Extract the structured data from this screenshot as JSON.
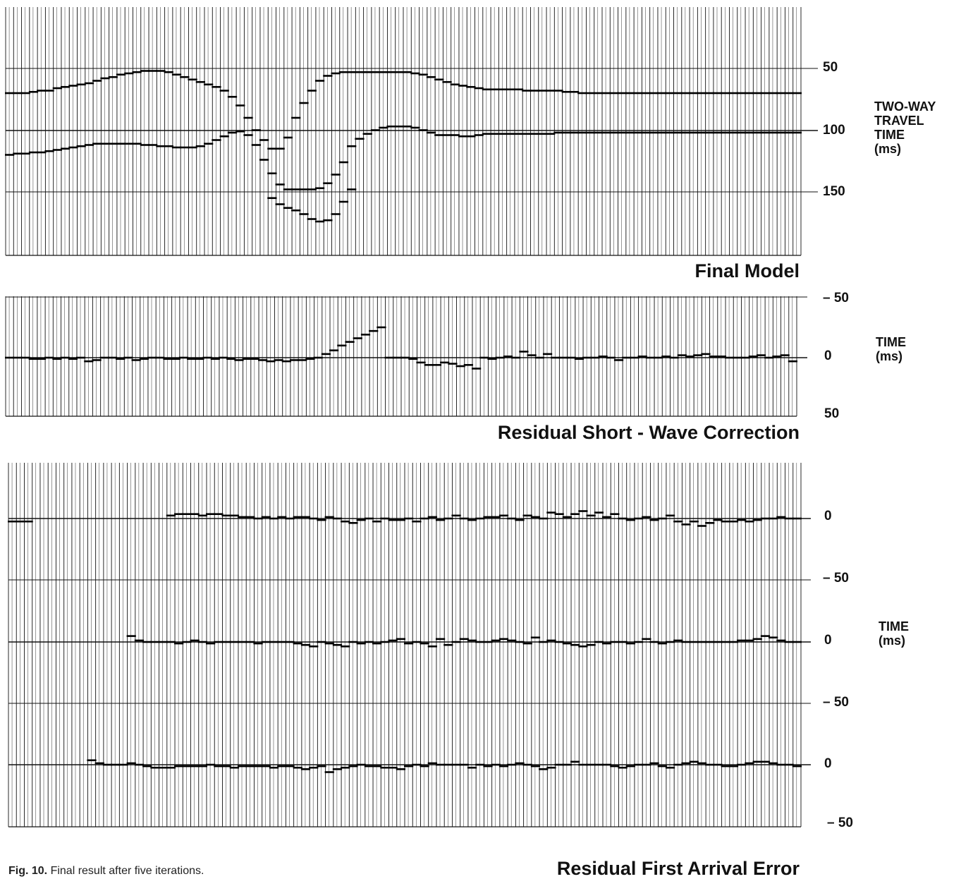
{
  "figure_caption": {
    "label": "Fig. 10.",
    "text": "Final result after five iterations."
  },
  "chart_data": [
    {
      "type": "line",
      "title": "Final Model",
      "ylabel_lines": [
        "TWO-WAY",
        "TRAVEL",
        "TIME",
        "(ms)"
      ],
      "tick_labels": [
        "50",
        "100",
        "150"
      ],
      "ylim": [
        0,
        200
      ],
      "y_inverted": true,
      "grid": true,
      "trace_count": 100,
      "series": [
        {
          "values": [
            70,
            70,
            70,
            69,
            68,
            68,
            66,
            65,
            64,
            63,
            62,
            60,
            58,
            57,
            55,
            54,
            53,
            52,
            52,
            52,
            53,
            55,
            57,
            59,
            61,
            63,
            65,
            68,
            73,
            80,
            90,
            100,
            108,
            115,
            115,
            106,
            90,
            78,
            68,
            60,
            56,
            54,
            53,
            53,
            53,
            53,
            53,
            53,
            53,
            53,
            53,
            54,
            55,
            57,
            59,
            61,
            63,
            64,
            65,
            66,
            67,
            67,
            67,
            67,
            67,
            68,
            68,
            68,
            68,
            68,
            69,
            69,
            70,
            70,
            70,
            70,
            70,
            70,
            70,
            70,
            70,
            70,
            70,
            70,
            70,
            70,
            70,
            70,
            70,
            70,
            70,
            70,
            70,
            70,
            70,
            70,
            70,
            70,
            70,
            70
          ]
        },
        {
          "values": [
            120,
            119,
            119,
            118,
            118,
            117,
            116,
            115,
            114,
            113,
            112,
            111,
            111,
            111,
            111,
            111,
            111,
            112,
            112,
            113,
            113,
            114,
            114,
            114,
            113,
            111,
            108,
            105,
            102,
            101,
            104,
            112,
            124,
            135,
            144,
            148,
            148,
            148,
            148,
            147,
            143,
            136,
            126,
            113,
            107,
            103,
            100,
            98,
            97,
            97,
            97,
            98,
            100,
            102,
            104,
            104,
            104,
            105,
            105,
            104,
            103,
            103,
            103,
            103,
            103,
            103,
            103,
            103,
            103,
            102,
            102,
            102,
            102,
            102,
            102,
            102,
            102,
            102,
            102,
            102,
            102,
            102,
            102,
            102,
            102,
            102,
            102,
            102,
            102,
            102,
            102,
            102,
            102,
            102,
            102,
            102,
            102,
            102,
            102,
            102
          ]
        },
        {
          "values": [
            null,
            null,
            null,
            null,
            null,
            null,
            null,
            null,
            null,
            null,
            null,
            null,
            null,
            null,
            null,
            null,
            null,
            null,
            null,
            null,
            null,
            null,
            null,
            null,
            null,
            null,
            null,
            null,
            null,
            null,
            null,
            null,
            null,
            155,
            160,
            163,
            165,
            168,
            172,
            174,
            173,
            168,
            158,
            148,
            null,
            null,
            null,
            null,
            null,
            null,
            null,
            null,
            null,
            null,
            null,
            null,
            null,
            null,
            null,
            null,
            null,
            null,
            null,
            null,
            null,
            null,
            null,
            null,
            null,
            null,
            null,
            null,
            null,
            null,
            null,
            null,
            null,
            null,
            null,
            null,
            null,
            null,
            null,
            null,
            null,
            null,
            null,
            null,
            null,
            null,
            null,
            null,
            null,
            null,
            null,
            null,
            null,
            null,
            null,
            null
          ]
        }
      ]
    },
    {
      "type": "line",
      "title": "Residual Short - Wave Correction",
      "ylabel_lines": [
        "TIME",
        "(ms)"
      ],
      "tick_labels": [
        "– 50",
        "0",
        "50"
      ],
      "ylim": [
        -50,
        50
      ],
      "grid": true,
      "trace_count": 100,
      "series": [
        {
          "values": [
            0,
            0,
            0,
            -1,
            -1,
            0,
            -1,
            0,
            -1,
            0,
            -3,
            -2,
            0,
            0,
            -1,
            0,
            -2,
            -1,
            0,
            0,
            -1,
            -1,
            0,
            -1,
            -1,
            0,
            -1,
            0,
            -1,
            -2,
            -1,
            -1,
            -2,
            -3,
            -2,
            -3,
            -2,
            -2,
            -1,
            0,
            3,
            6,
            10,
            13,
            16,
            19,
            22,
            25,
            0,
            0,
            0,
            -1,
            -4,
            -6,
            -6,
            -4,
            -5,
            -7,
            -6,
            -9,
            0,
            -1,
            0,
            1,
            0,
            5,
            2,
            0,
            3,
            0,
            0,
            0,
            -1,
            0,
            0,
            1,
            0,
            -2,
            0,
            0,
            1,
            0,
            0,
            1,
            0,
            2,
            1,
            2,
            3,
            1,
            1,
            0,
            0,
            0,
            1,
            2,
            0,
            1,
            2,
            -3
          ]
        }
      ]
    },
    {
      "type": "line",
      "title": "Residual First Arrival Error",
      "ylabel_lines": [
        "TIME",
        "(ms)"
      ],
      "tick_labels": [
        "0",
        "– 50",
        "0",
        "– 50",
        "0",
        "– 50"
      ],
      "ylim": [
        -150,
        50
      ],
      "grid": true,
      "trace_count": 100,
      "series": [
        {
          "values": [
            -2,
            -2,
            -2,
            null,
            null,
            null,
            null,
            null,
            null,
            null,
            null,
            null,
            null,
            null,
            null,
            null,
            null,
            null,
            null,
            null,
            2,
            3,
            3,
            3,
            2,
            3,
            3,
            2,
            2,
            1,
            1,
            0,
            1,
            0,
            1,
            0,
            1,
            1,
            0,
            -1,
            1,
            0,
            -2,
            -3,
            -1,
            0,
            -2,
            0,
            -1,
            -1,
            0,
            -2,
            0,
            1,
            -1,
            0,
            2,
            0,
            -1,
            0,
            1,
            1,
            2,
            0,
            -1,
            2,
            1,
            0,
            4,
            3,
            1,
            3,
            5,
            2,
            4,
            1,
            3,
            0,
            -1,
            0,
            1,
            -1,
            0,
            2,
            -2,
            -4,
            -2,
            -5,
            -3,
            -1,
            -2,
            -2,
            -1,
            -2,
            -1,
            0,
            0,
            1,
            0,
            0
          ]
        },
        {
          "values": [
            null,
            null,
            null,
            null,
            null,
            null,
            null,
            null,
            null,
            null,
            null,
            null,
            null,
            null,
            null,
            4,
            1,
            0,
            0,
            0,
            0,
            -1,
            0,
            1,
            0,
            -1,
            0,
            0,
            0,
            0,
            0,
            -1,
            0,
            0,
            0,
            0,
            -1,
            -2,
            -3,
            0,
            -1,
            -2,
            -3,
            0,
            -1,
            0,
            -1,
            0,
            1,
            2,
            -1,
            0,
            -1,
            -3,
            2,
            -2,
            0,
            2,
            1,
            0,
            0,
            1,
            2,
            1,
            0,
            -1,
            3,
            0,
            1,
            0,
            -1,
            -2,
            -3,
            -2,
            0,
            -1,
            0,
            0,
            -1,
            0,
            2,
            0,
            -1,
            0,
            1,
            0,
            0,
            0,
            0,
            0,
            0,
            0,
            1,
            1,
            2,
            4,
            3,
            1,
            0,
            0
          ]
        },
        {
          "values": [
            null,
            null,
            null,
            null,
            null,
            null,
            null,
            null,
            null,
            null,
            3,
            1,
            0,
            0,
            0,
            1,
            0,
            -1,
            -2,
            -2,
            -2,
            -1,
            -1,
            -1,
            -1,
            0,
            -1,
            -1,
            -2,
            -1,
            -1,
            -1,
            -1,
            -2,
            -1,
            -1,
            -2,
            -3,
            -2,
            -1,
            -5,
            -3,
            -2,
            -1,
            0,
            -1,
            -1,
            -2,
            -2,
            -3,
            -1,
            0,
            -1,
            1,
            0,
            0,
            0,
            0,
            -2,
            0,
            -1,
            0,
            -1,
            0,
            1,
            0,
            -1,
            -3,
            -2,
            0,
            0,
            2,
            0,
            0,
            0,
            0,
            -1,
            -2,
            -1,
            0,
            0,
            1,
            -1,
            -2,
            0,
            1,
            2,
            1,
            0,
            0,
            -1,
            -1,
            0,
            1,
            2,
            2,
            1,
            0,
            0,
            -1
          ]
        }
      ]
    }
  ]
}
